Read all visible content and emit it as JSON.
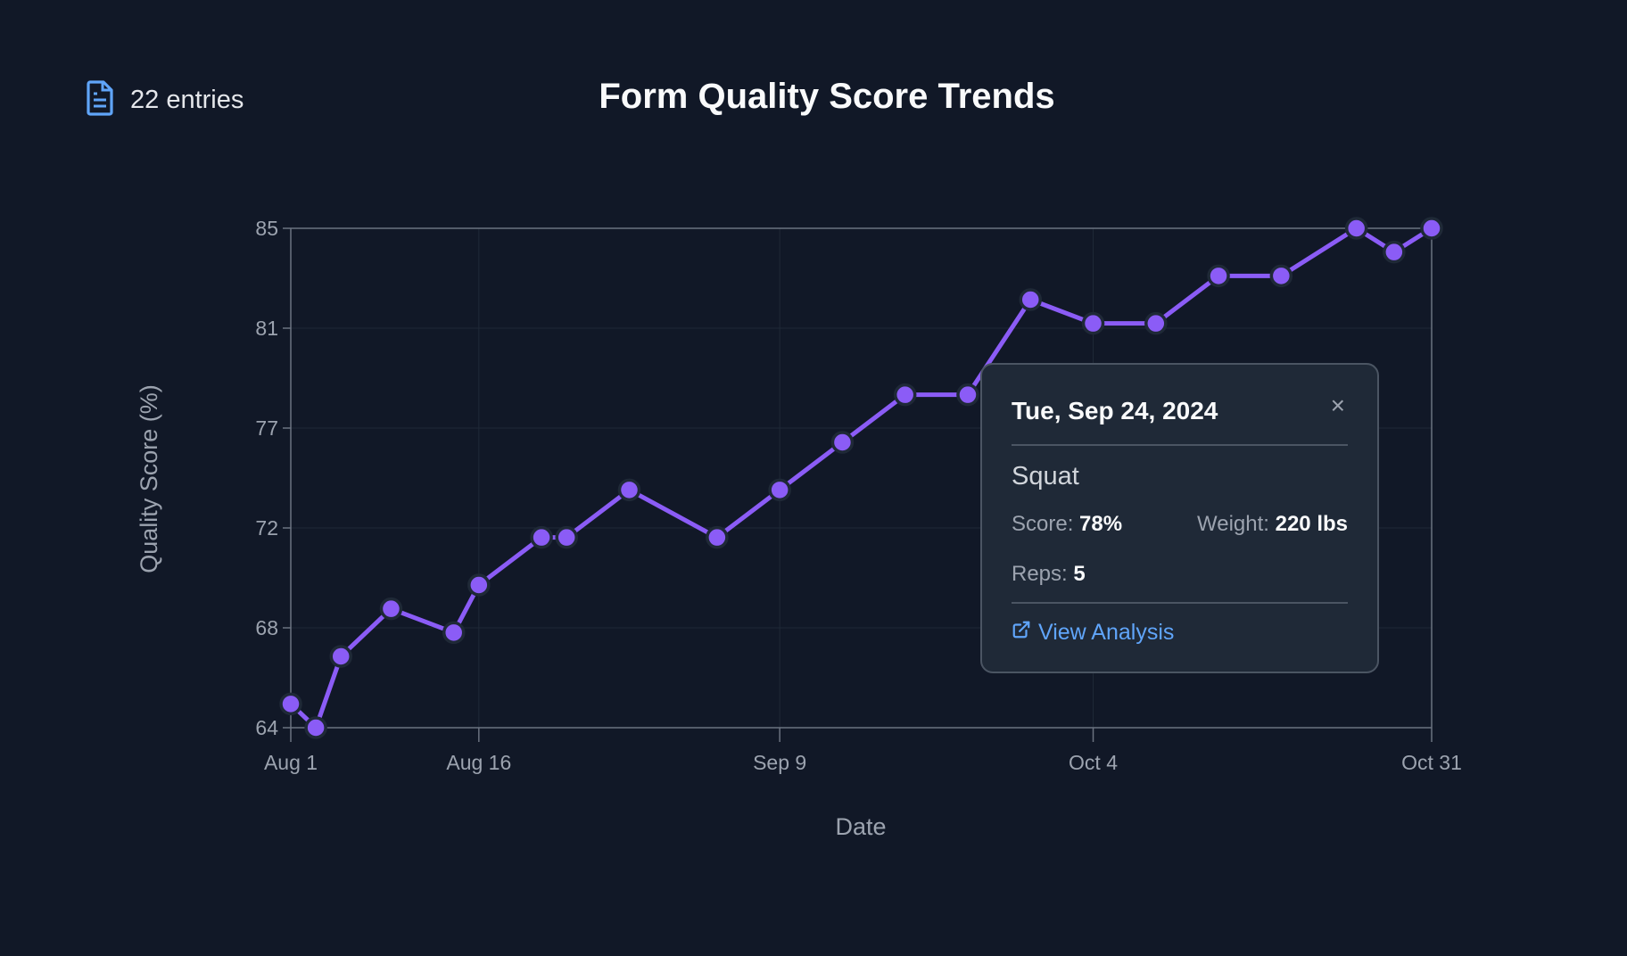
{
  "header": {
    "entries_label": "22 entries",
    "icon": "document-icon"
  },
  "chart_data": {
    "type": "line",
    "title": "Form Quality Score Trends",
    "xlabel": "Date",
    "ylabel": "Quality Score (%)",
    "ylim": [
      64,
      85
    ],
    "xlim_days_from_aug1": [
      0,
      91
    ],
    "y_ticks": [
      {
        "value": 64,
        "label": "64"
      },
      {
        "value": 68.2,
        "label": "68"
      },
      {
        "value": 72.4,
        "label": "72"
      },
      {
        "value": 76.6,
        "label": "77"
      },
      {
        "value": 80.8,
        "label": "81"
      },
      {
        "value": 85,
        "label": "85"
      }
    ],
    "x_ticks": [
      {
        "day": 0,
        "label": "Aug 1"
      },
      {
        "day": 15,
        "label": "Aug 16"
      },
      {
        "day": 39,
        "label": "Sep 9"
      },
      {
        "day": 64,
        "label": "Oct 4"
      },
      {
        "day": 91,
        "label": "Oct 31"
      }
    ],
    "series": [
      {
        "name": "Quality Score",
        "color": "#8b5cf6",
        "points": [
          {
            "date": "2024-08-01",
            "day": 0,
            "value": 65
          },
          {
            "date": "2024-08-03",
            "day": 2,
            "value": 64
          },
          {
            "date": "2024-08-05",
            "day": 4,
            "value": 67
          },
          {
            "date": "2024-08-09",
            "day": 8,
            "value": 69
          },
          {
            "date": "2024-08-14",
            "day": 13,
            "value": 68
          },
          {
            "date": "2024-08-16",
            "day": 15,
            "value": 70
          },
          {
            "date": "2024-08-21",
            "day": 20,
            "value": 72
          },
          {
            "date": "2024-08-23",
            "day": 22,
            "value": 72
          },
          {
            "date": "2024-08-28",
            "day": 27,
            "value": 74
          },
          {
            "date": "2024-09-04",
            "day": 34,
            "value": 72
          },
          {
            "date": "2024-09-09",
            "day": 39,
            "value": 74
          },
          {
            "date": "2024-09-14",
            "day": 44,
            "value": 76
          },
          {
            "date": "2024-09-19",
            "day": 49,
            "value": 78
          },
          {
            "date": "2024-09-24",
            "day": 54,
            "value": 78
          },
          {
            "date": "2024-09-29",
            "day": 59,
            "value": 82
          },
          {
            "date": "2024-10-04",
            "day": 64,
            "value": 81
          },
          {
            "date": "2024-10-09",
            "day": 69,
            "value": 81
          },
          {
            "date": "2024-10-14",
            "day": 74,
            "value": 83
          },
          {
            "date": "2024-10-19",
            "day": 79,
            "value": 83
          },
          {
            "date": "2024-10-25",
            "day": 85,
            "value": 85
          },
          {
            "date": "2024-10-28",
            "day": 88,
            "value": 84
          },
          {
            "date": "2024-10-31",
            "day": 91,
            "value": 85
          }
        ]
      }
    ]
  },
  "tooltip": {
    "date": "Tue, Sep 24, 2024",
    "close": "×",
    "exercise": "Squat",
    "score_label": "Score:",
    "score_value": "78%",
    "weight_label": "Weight:",
    "weight_value": "220 lbs",
    "reps_label": "Reps:",
    "reps_value": "5",
    "link_label": "View Analysis"
  },
  "colors": {
    "background": "#111827",
    "line": "#8b5cf6",
    "tooltip_bg": "#1f2937",
    "link": "#60a5fa"
  }
}
